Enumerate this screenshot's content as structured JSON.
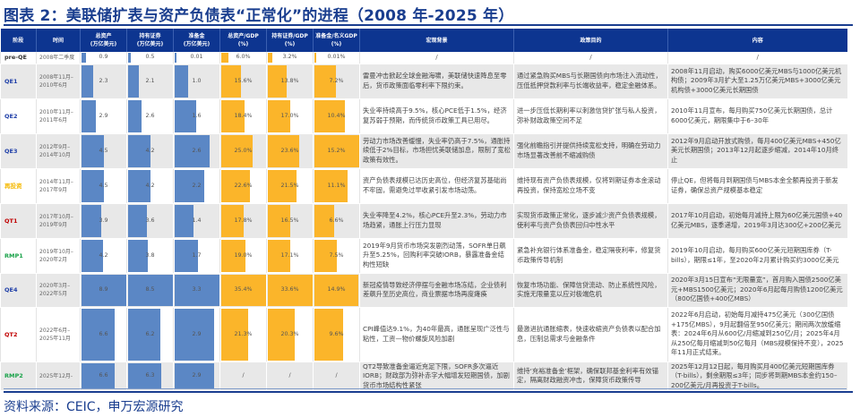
{
  "title": "图表 2：美联储扩表与资产负债表“正常化”的进程（2008 年-2025 年）",
  "source": "资料来源：CEIC，申万宏源研究",
  "colors": {
    "header_bg": "#0d3590",
    "title": "#1a3e8f",
    "bar_blue": "#5b87c5",
    "bar_orange": "#fbb52a",
    "stage_qe": "#1f3fa8",
    "stage_reinvest": "#f5b800",
    "stage_qt": "#c00000",
    "stage_rmp": "#1aa34a",
    "stage_pre": "#333333"
  },
  "table": {
    "headers": {
      "stage": "阶段",
      "time": "时间",
      "assets_1": "总资产",
      "assets_2": "(万亿美元)",
      "securities_1": "持有证券",
      "securities_2": "(万亿美元)",
      "reserves_1": "准备金",
      "reserves_2": "(万亿美元)",
      "assets_gdp_1": "总资产/GDP",
      "assets_gdp_2": "(%)",
      "securities_gdp_1": "持有证券/GDP",
      "securities_gdp_2": "(%)",
      "reserves_gdp_1": "准备金/名义GDP",
      "reserves_gdp_2": "(%)",
      "macro": "宏观背景",
      "goal": "政策目的",
      "content": "内容"
    },
    "rows": [
      {
        "stage": "pre-QE",
        "stage_type": "pre",
        "time_1": "2008年二季度",
        "time_2": "",
        "assets": "0.9",
        "securities": "0.5",
        "reserves": "0.01",
        "assets_gdp": "6.0%",
        "securities_gdp": "3.2%",
        "reserves_gdp": "0.01%",
        "macro": "/",
        "goal": "/",
        "content": "/"
      },
      {
        "stage": "QE1",
        "stage_type": "qe",
        "time_1": "2008年11月–",
        "time_2": "2010年6月",
        "assets": "2.3",
        "securities": "2.1",
        "reserves": "1.0",
        "assets_gdp": "15.6%",
        "securities_gdp": "13.8%",
        "reserves_gdp": "7.2%",
        "macro": "雷曼冲击掀起全球金融海啸，美联储快速降息至零后，货币政策面临零利率下限约束。",
        "goal": "通过紧急购买MBS与长期国债向市场注入流动性，压低抵押贷款利率与长端收益率，稳定金融体系。",
        "content": "2008年11月启动，购买6000亿美元MBS与1000亿美元机构债；2009年3月扩大至1.25万亿美元MBS+3000亿美元机构债+3000亿美元长期国债"
      },
      {
        "stage": "QE2",
        "stage_type": "qe",
        "time_1": "2010年11月–",
        "time_2": "2011年6月",
        "assets": "2.9",
        "securities": "2.6",
        "reserves": "1.6",
        "assets_gdp": "18.4%",
        "securities_gdp": "17.0%",
        "reserves_gdp": "10.4%",
        "macro": "失业率持续高于9.5%，核心PCE低于1.5%，经济复苏弱于预期，而传统货币政策工具已用尽。",
        "goal": "进一步压低长期利率以刺激信贷扩张与私人投资，弥补财政政策空间不足",
        "content": "2010年11月宣布，每月购买750亿美元长期国债，总计6000亿美元，期限集中于6–30年"
      },
      {
        "stage": "QE3",
        "stage_type": "qe",
        "time_1": "2012年9月–",
        "time_2": "2014年10月",
        "assets": "4.5",
        "securities": "4.2",
        "reserves": "2.6",
        "assets_gdp": "25.0%",
        "securities_gdp": "23.6%",
        "reserves_gdp": "15.2%",
        "macro": "劳动力市场改善缓慢，失业率仍高于7.5%，通胀持续低于2%目标，市场担忧美联储加息，限制了宽松政策有效性。",
        "goal": "强化前瞻指引并提供持续宽松支持，明确在劳动力市场显著改善前不缩减购债",
        "content": "2012年9月启动开放式购债，每月400亿美元MBS+450亿美元长期国债；2013年12月起逐步缩减，2014年10月终止"
      },
      {
        "stage": "再投资",
        "stage_type": "reinvest",
        "time_1": "2014年11月–",
        "time_2": "2017年9月",
        "assets": "4.5",
        "securities": "4.2",
        "reserves": "2.2",
        "assets_gdp": "22.6%",
        "securities_gdp": "21.5%",
        "reserves_gdp": "11.1%",
        "macro": "资产负债表规模已达历史高位，但经济复苏基础尚不牢固，需避免过早收紧引发市场动荡。",
        "goal": "维持现有资产负债表规模，仅将到期证券本金滚动再投资，保持宽松立场不变",
        "content": "停止QE，但将每月到期国债与MBS本金全额再投资于新发证券，确保总资产规模基本稳定"
      },
      {
        "stage": "QT1",
        "stage_type": "qt",
        "time_1": "2017年10月–",
        "time_2": "2019年9月",
        "assets": "3.9",
        "securities": "3.6",
        "reserves": "1.4",
        "assets_gdp": "17.8%",
        "securities_gdp": "16.5%",
        "reserves_gdp": "6.6%",
        "macro": "失业率降至4.2%，核心PCE升至2.3%，劳动力市场趋紧，通胀上行压力显现",
        "goal": "实现货币政策正常化，逐步减少资产负债表规模，使利率与资产负债表回归中性水平",
        "content": "2017年10月启动，初始每月减持上限为60亿美元国债+40亿美元MBS，逐季递增，2019年3月达300亿+200亿美元"
      },
      {
        "stage": "RMP1",
        "stage_type": "rmp",
        "time_1": "2019年10月–",
        "time_2": "2020年2月",
        "assets": "4.2",
        "securities": "3.8",
        "reserves": "1.7",
        "assets_gdp": "19.0%",
        "securities_gdp": "17.1%",
        "reserves_gdp": "7.5%",
        "macro": "2019年9月货币市场突发剧烈动荡，SOFR单日飙升至5.25%，回购利率突破IORB，暴露准备金结构性短缺",
        "goal": "紧急补充银行体系准备金，稳定隔夜利率，修复货币政策传导机制",
        "content": "2019年10月启动，每月购买600亿美元短期国库券（T-bills），期限≤1年，至2020年2月累计购买约3000亿美元"
      },
      {
        "stage": "QE4",
        "stage_type": "qe",
        "time_1": "2020年3月–",
        "time_2": "2022年5月",
        "assets": "8.9",
        "securities": "8.5",
        "reserves": "3.3",
        "assets_gdp": "35.4%",
        "securities_gdp": "33.6%",
        "reserves_gdp": "14.9%",
        "macro": "新冠疫情导致经济停摆与金融市场冻结，企业债利差飙升至历史高位，商业票据市场再度瘫痪",
        "goal": "恢复市场功能、保障信贷流动、防止系统性风险，实施无限量宽以应对极端危机",
        "content": "2020年3月15日宣布“无限量宽”，首月购入国债2500亿美元+MBS1500亿美元；2020年6月起每月购债1200亿美元（800亿国债+400亿MBS）"
      },
      {
        "stage": "QT2",
        "stage_type": "qt",
        "time_1": "2022年6月–",
        "time_2": "2025年11月",
        "assets": "6.6",
        "securities": "6.2",
        "reserves": "2.9",
        "assets_gdp": "21.3%",
        "securities_gdp": "20.3%",
        "reserves_gdp": "9.6%",
        "macro": "CPI峰值达9.1%，为40年最高，通胀呈现广泛性与粘性，工资—物价螺旋风险加剧",
        "goal": "最激进抗通胀缩表，快速收缩资产负债表以配合加息，压制总需求与金融条件",
        "content": "2022年6月启动，初始每月减持475亿美元（300亿国债+175亿MBS），9月起翻倍至950亿美元；期间两次放缓缩表：2024年6月从600亿/月缩减到250亿/月；2025年4月从250亿每月缩减到50亿每月（MBS规模保持不变），2025年11月正式结束。"
      },
      {
        "stage": "RMP2",
        "stage_type": "rmp",
        "time_1": "2025年12月-",
        "time_2": "",
        "assets": "6.6",
        "securities": "6.3",
        "reserves": "2.9",
        "assets_gdp": "/",
        "securities_gdp": "/",
        "reserves_gdp": "/",
        "macro": "QT2导致准备金逼近充足下限，SOFR多次逼近IORB；财政部为弥补赤字大幅增发短期国债，加剧货币市场结构性紧张",
        "goal": "维持‘充裕准备金’框架，确保联邦基金利率有效锚定，隔离财政融资冲击，保障货币政策传导",
        "content": "2025年12月12日起，每月购买月400亿美元短期国库券（T-bills），剩余期限≤3年；同步将到期MBS本金约150–200亿美元/月再投资于T-bills。"
      }
    ]
  },
  "bar_scales": {
    "assets_max": 8.9,
    "securities_max": 8.5,
    "reserves_max": 3.3,
    "assets_gdp_max": 35.4,
    "securities_gdp_max": 33.6,
    "reserves_gdp_max": 15.2
  }
}
